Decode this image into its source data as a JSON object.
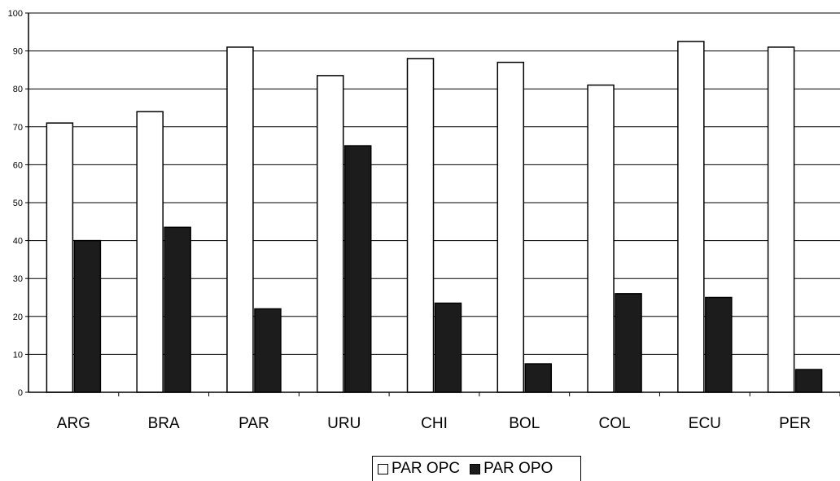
{
  "chart_data": {
    "type": "bar",
    "categories": [
      "ARG",
      "BRA",
      "PAR",
      "URU",
      "CHI",
      "BOL",
      "COL",
      "ECU",
      "PER"
    ],
    "series": [
      {
        "name": "PAR OPC",
        "color": "#ffffff",
        "values": [
          71,
          74,
          91,
          83.5,
          88,
          87,
          81,
          92.5,
          91
        ]
      },
      {
        "name": "PAR OPO",
        "color": "#1c1c1c",
        "values": [
          40,
          43.5,
          22,
          65,
          23.5,
          7.5,
          26,
          25,
          6
        ]
      }
    ],
    "ylim": [
      0,
      100
    ],
    "yticks": [
      0,
      10,
      20,
      30,
      40,
      50,
      60,
      70,
      80,
      90,
      100
    ],
    "grid": true,
    "legend": "bottom",
    "title": "",
    "xlabel": "",
    "ylabel": ""
  }
}
